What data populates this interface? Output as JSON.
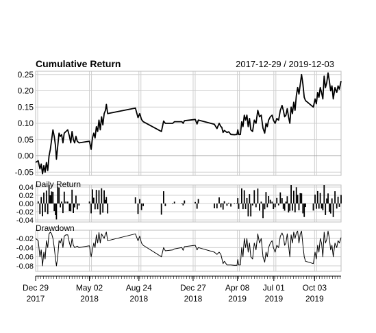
{
  "chart_data": {
    "type": "line",
    "title": "Cumulative Return",
    "date_range": "2017-12-29 / 2019-12-03",
    "x_ticks": [
      {
        "day": "Dec 29",
        "year": "2017",
        "t": 0
      },
      {
        "day": "May 02",
        "year": "2018",
        "t": 124
      },
      {
        "day": "Aug 24",
        "year": "2018",
        "t": 238
      },
      {
        "day": "Dec 27",
        "year": "2018",
        "t": 363
      },
      {
        "day": "Apr 08",
        "year": "2019",
        "t": 465
      },
      {
        "day": "Jul 01",
        "year": "2019",
        "t": 549
      },
      {
        "day": "Oct 03",
        "year": "2019",
        "t": 643
      }
    ],
    "x_range": [
      0,
      704
    ],
    "panels": [
      {
        "name": "Cumulative Return",
        "label": "",
        "ylim": [
          -0.06,
          0.26
        ],
        "y_ticks": [
          "0.25",
          "0.20",
          "0.15",
          "0.10",
          "0.05",
          "0.00",
          "-0.05"
        ],
        "y_tick_values": [
          0.25,
          0.2,
          0.15,
          0.1,
          0.05,
          0.0,
          -0.05
        ],
        "series_points": [
          [
            0,
            -0.02
          ],
          [
            6,
            -0.015
          ],
          [
            10,
            -0.04
          ],
          [
            13,
            -0.025
          ],
          [
            16,
            -0.055
          ],
          [
            19,
            -0.03
          ],
          [
            22,
            -0.05
          ],
          [
            25,
            -0.02
          ],
          [
            28,
            -0.045
          ],
          [
            31,
            0.0
          ],
          [
            34,
            0.02
          ],
          [
            37,
            0.05
          ],
          [
            40,
            0.08
          ],
          [
            43,
            0.06
          ],
          [
            46,
            0.03
          ],
          [
            48,
            -0.01
          ],
          [
            51,
            0.03
          ],
          [
            54,
            0.07
          ],
          [
            57,
            0.06
          ],
          [
            60,
            0.065
          ],
          [
            63,
            0.04
          ],
          [
            66,
            0.07
          ],
          [
            70,
            0.075
          ],
          [
            74,
            0.08
          ],
          [
            78,
            0.06
          ],
          [
            81,
            0.04
          ],
          [
            84,
            0.075
          ],
          [
            87,
            0.05
          ],
          [
            90,
            0.04
          ],
          [
            93,
            0.06
          ],
          [
            96,
            0.045
          ],
          [
            100,
            0.04
          ],
          [
            124,
            0.045
          ],
          [
            128,
            0.02
          ],
          [
            131,
            0.055
          ],
          [
            134,
            0.07
          ],
          [
            137,
            0.055
          ],
          [
            140,
            0.09
          ],
          [
            143,
            0.075
          ],
          [
            146,
            0.11
          ],
          [
            149,
            0.08
          ],
          [
            152,
            0.12
          ],
          [
            155,
            0.095
          ],
          [
            158,
            0.13
          ],
          [
            161,
            0.14
          ],
          [
            163,
            0.158
          ],
          [
            166,
            0.13
          ],
          [
            230,
            0.147
          ],
          [
            236,
            0.118
          ],
          [
            240,
            0.13
          ],
          [
            244,
            0.112
          ],
          [
            248,
            0.105
          ],
          [
            290,
            0.075
          ],
          [
            295,
            0.107
          ],
          [
            299,
            0.1
          ],
          [
            316,
            0.1
          ],
          [
            320,
            0.105
          ],
          [
            337,
            0.105
          ],
          [
            340,
            0.1
          ],
          [
            343,
            0.108
          ],
          [
            368,
            0.112
          ],
          [
            372,
            0.098
          ],
          [
            375,
            0.11
          ],
          [
            412,
            0.097
          ],
          [
            418,
            0.084
          ],
          [
            423,
            0.1
          ],
          [
            427,
            0.09
          ],
          [
            429,
            0.088
          ],
          [
            432,
            0.072
          ],
          [
            435,
            0.078
          ],
          [
            441,
            0.072
          ],
          [
            445,
            0.074
          ],
          [
            450,
            0.066
          ],
          [
            458,
            0.065
          ],
          [
            464,
            0.066
          ],
          [
            466,
            0.08
          ],
          [
            468,
            0.066
          ],
          [
            472,
            0.066
          ],
          [
            475,
            0.105
          ],
          [
            478,
            0.09
          ],
          [
            481,
            0.125
          ],
          [
            484,
            0.11
          ],
          [
            487,
            0.125
          ],
          [
            490,
            0.09
          ],
          [
            493,
            0.115
          ],
          [
            496,
            0.08
          ],
          [
            500,
            0.075
          ],
          [
            504,
            0.11
          ],
          [
            508,
            0.1
          ],
          [
            512,
            0.14
          ],
          [
            516,
            0.12
          ],
          [
            520,
            0.125
          ],
          [
            524,
            0.085
          ],
          [
            528,
            0.07
          ],
          [
            531,
            0.1
          ],
          [
            534,
            0.09
          ],
          [
            537,
            0.11
          ],
          [
            541,
            0.12
          ],
          [
            545,
            0.125
          ],
          [
            548,
            0.11
          ],
          [
            552,
            0.1
          ],
          [
            556,
            0.115
          ],
          [
            560,
            0.11
          ],
          [
            564,
            0.14
          ],
          [
            568,
            0.155
          ],
          [
            571,
            0.14
          ],
          [
            574,
            0.12
          ],
          [
            577,
            0.125
          ],
          [
            580,
            0.145
          ],
          [
            583,
            0.12
          ],
          [
            586,
            0.1
          ],
          [
            589,
            0.15
          ],
          [
            592,
            0.13
          ],
          [
            595,
            0.165
          ],
          [
            598,
            0.14
          ],
          [
            601,
            0.185
          ],
          [
            604,
            0.21
          ],
          [
            607,
            0.19
          ],
          [
            610,
            0.22
          ],
          [
            613,
            0.25
          ],
          [
            616,
            0.22
          ],
          [
            619,
            0.18
          ],
          [
            622,
            0.17
          ],
          [
            640,
            0.15
          ],
          [
            644,
            0.175
          ],
          [
            647,
            0.16
          ],
          [
            650,
            0.195
          ],
          [
            653,
            0.18
          ],
          [
            656,
            0.21
          ],
          [
            659,
            0.195
          ],
          [
            662,
            0.175
          ],
          [
            665,
            0.245
          ],
          [
            668,
            0.21
          ],
          [
            671,
            0.225
          ],
          [
            674,
            0.255
          ],
          [
            677,
            0.23
          ],
          [
            680,
            0.2
          ],
          [
            683,
            0.215
          ],
          [
            686,
            0.175
          ],
          [
            690,
            0.21
          ],
          [
            694,
            0.195
          ],
          [
            697,
            0.215
          ],
          [
            700,
            0.205
          ],
          [
            704,
            0.23
          ]
        ]
      },
      {
        "name": "Daily Return",
        "label": "Daily Return",
        "ylim": [
          -0.045,
          0.045
        ],
        "y_ticks": [
          "0.04",
          "0.02",
          "0.00",
          "-0.02",
          "-0.04"
        ],
        "y_tick_values": [
          0.04,
          0.02,
          0.0,
          -0.02,
          -0.04
        ]
      },
      {
        "name": "Drawdown",
        "label": "Drawdown",
        "ylim": [
          -0.092,
          -0.002
        ],
        "y_ticks": [
          "-0.02",
          "-0.04",
          "-0.06",
          "-0.08"
        ],
        "y_tick_values": [
          -0.02,
          -0.04,
          -0.06,
          -0.08
        ],
        "series_points": [
          [
            0,
            -0.02
          ],
          [
            6,
            -0.025
          ],
          [
            10,
            -0.06
          ],
          [
            13,
            -0.045
          ],
          [
            16,
            -0.08
          ],
          [
            19,
            -0.05
          ],
          [
            22,
            -0.065
          ],
          [
            25,
            -0.025
          ],
          [
            28,
            -0.04
          ],
          [
            31,
            -0.01
          ],
          [
            34,
            -0.006
          ],
          [
            37,
            -0.01
          ],
          [
            40,
            -0.02
          ],
          [
            43,
            -0.04
          ],
          [
            46,
            -0.065
          ],
          [
            48,
            -0.08
          ],
          [
            51,
            -0.06
          ],
          [
            54,
            -0.025
          ],
          [
            57,
            -0.03
          ],
          [
            60,
            -0.02
          ],
          [
            63,
            -0.04
          ],
          [
            66,
            -0.015
          ],
          [
            70,
            -0.012
          ],
          [
            74,
            -0.012
          ],
          [
            78,
            -0.03
          ],
          [
            81,
            -0.04
          ],
          [
            84,
            -0.02
          ],
          [
            87,
            -0.035
          ],
          [
            90,
            -0.04
          ],
          [
            96,
            -0.037
          ],
          [
            100,
            -0.04
          ],
          [
            124,
            -0.036
          ],
          [
            128,
            -0.06
          ],
          [
            131,
            -0.045
          ],
          [
            134,
            -0.03
          ],
          [
            137,
            -0.04
          ],
          [
            140,
            -0.012
          ],
          [
            143,
            -0.03
          ],
          [
            146,
            -0.007
          ],
          [
            149,
            -0.03
          ],
          [
            152,
            -0.01
          ],
          [
            155,
            -0.015
          ],
          [
            158,
            -0.02
          ],
          [
            161,
            -0.01
          ],
          [
            163,
            -0.006
          ],
          [
            166,
            -0.025
          ],
          [
            230,
            -0.01
          ],
          [
            236,
            -0.025
          ],
          [
            240,
            -0.015
          ],
          [
            244,
            -0.03
          ],
          [
            248,
            -0.035
          ],
          [
            290,
            -0.06
          ],
          [
            295,
            -0.04
          ],
          [
            299,
            -0.047
          ],
          [
            316,
            -0.045
          ],
          [
            320,
            -0.043
          ],
          [
            337,
            -0.04
          ],
          [
            340,
            -0.046
          ],
          [
            343,
            -0.038
          ],
          [
            368,
            -0.035
          ],
          [
            372,
            -0.045
          ],
          [
            375,
            -0.04
          ],
          [
            412,
            -0.05
          ],
          [
            418,
            -0.055
          ],
          [
            423,
            -0.05
          ],
          [
            427,
            -0.055
          ],
          [
            432,
            -0.075
          ],
          [
            435,
            -0.07
          ],
          [
            441,
            -0.078
          ],
          [
            450,
            -0.078
          ],
          [
            458,
            -0.079
          ],
          [
            464,
            -0.079
          ],
          [
            466,
            -0.066
          ],
          [
            468,
            -0.078
          ],
          [
            472,
            -0.078
          ],
          [
            475,
            -0.04
          ],
          [
            478,
            -0.06
          ],
          [
            481,
            -0.02
          ],
          [
            484,
            -0.04
          ],
          [
            487,
            -0.02
          ],
          [
            490,
            -0.05
          ],
          [
            493,
            -0.03
          ],
          [
            496,
            -0.06
          ],
          [
            500,
            -0.065
          ],
          [
            504,
            -0.03
          ],
          [
            508,
            -0.045
          ],
          [
            512,
            -0.01
          ],
          [
            516,
            -0.03
          ],
          [
            520,
            -0.02
          ],
          [
            524,
            -0.06
          ],
          [
            528,
            -0.072
          ],
          [
            531,
            -0.05
          ],
          [
            534,
            -0.06
          ],
          [
            537,
            -0.04
          ],
          [
            541,
            -0.03
          ],
          [
            545,
            -0.025
          ],
          [
            548,
            -0.04
          ],
          [
            552,
            -0.05
          ],
          [
            556,
            -0.035
          ],
          [
            560,
            -0.04
          ],
          [
            564,
            -0.015
          ],
          [
            568,
            -0.008
          ],
          [
            571,
            -0.015
          ],
          [
            574,
            -0.035
          ],
          [
            577,
            -0.03
          ],
          [
            580,
            -0.01
          ],
          [
            583,
            -0.035
          ],
          [
            586,
            -0.06
          ],
          [
            589,
            -0.012
          ],
          [
            592,
            -0.03
          ],
          [
            595,
            -0.006
          ],
          [
            598,
            -0.02
          ],
          [
            601,
            -0.008
          ],
          [
            604,
            -0.004
          ],
          [
            607,
            -0.03
          ],
          [
            610,
            -0.01
          ],
          [
            613,
            -0.004
          ],
          [
            616,
            -0.035
          ],
          [
            619,
            -0.06
          ],
          [
            622,
            -0.07
          ],
          [
            640,
            -0.075
          ],
          [
            644,
            -0.05
          ],
          [
            647,
            -0.065
          ],
          [
            650,
            -0.035
          ],
          [
            653,
            -0.05
          ],
          [
            656,
            -0.02
          ],
          [
            659,
            -0.03
          ],
          [
            662,
            -0.06
          ],
          [
            665,
            -0.006
          ],
          [
            668,
            -0.03
          ],
          [
            671,
            -0.022
          ],
          [
            674,
            -0.004
          ],
          [
            677,
            -0.02
          ],
          [
            680,
            -0.045
          ],
          [
            683,
            -0.035
          ],
          [
            686,
            -0.06
          ],
          [
            690,
            -0.03
          ],
          [
            694,
            -0.04
          ],
          [
            697,
            -0.025
          ],
          [
            700,
            -0.03
          ],
          [
            704,
            -0.018
          ]
        ]
      }
    ]
  }
}
